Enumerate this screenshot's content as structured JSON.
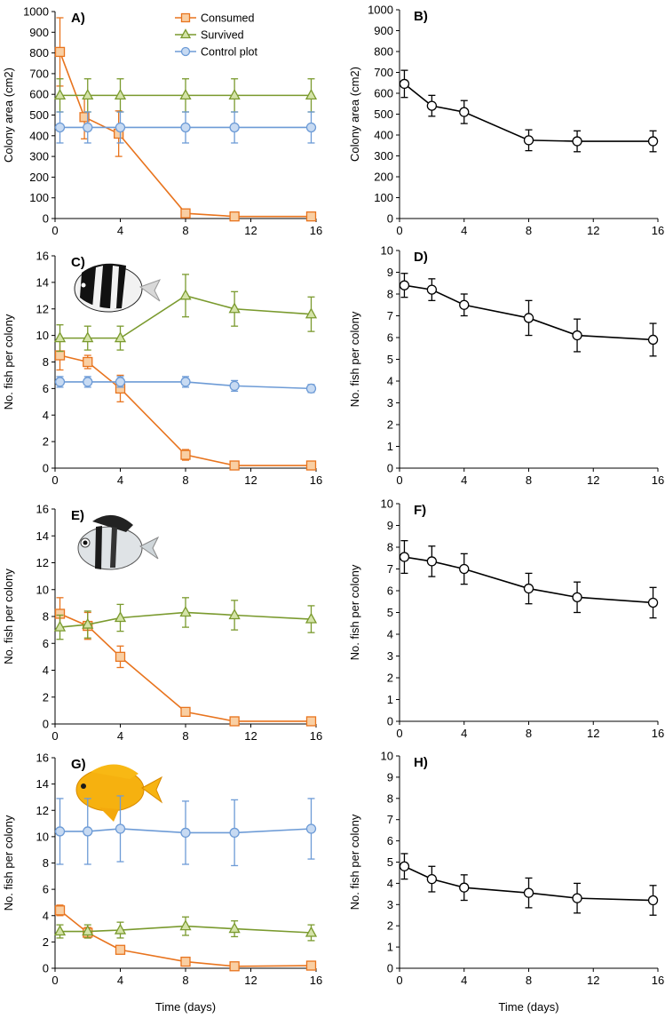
{
  "chart_data": [
    {
      "panel": "A)",
      "type": "line",
      "ylabel": "Colony area (cm2)",
      "xlabel": "",
      "ylim": [
        0,
        1000
      ],
      "ytick_step": 100,
      "xlim": [
        0,
        16
      ],
      "xticks": [
        0,
        4,
        8,
        12,
        16
      ],
      "legend": "top-center",
      "series": [
        {
          "name": "Consumed",
          "marker": "square",
          "color": "#e8741e",
          "fill": "#f9cfa3",
          "x": [
            0.3,
            1.8,
            3.9,
            8,
            11,
            15.7
          ],
          "y": [
            805,
            490,
            410,
            25,
            10,
            10
          ],
          "err": [
            165,
            105,
            110,
            0,
            0,
            0
          ]
        },
        {
          "name": "Survived",
          "marker": "triangle",
          "color": "#7a9a2e",
          "fill": "#d4e3a8",
          "x": [
            0.3,
            2,
            4,
            8,
            11,
            15.7
          ],
          "y": [
            595,
            595,
            595,
            595,
            595,
            595
          ],
          "err": [
            80,
            80,
            80,
            80,
            80,
            80
          ]
        },
        {
          "name": "Control plot",
          "marker": "circle",
          "color": "#6d9bd6",
          "fill": "#c7daf2",
          "x": [
            0.3,
            2,
            4,
            8,
            11,
            15.7
          ],
          "y": [
            440,
            440,
            440,
            440,
            440,
            440
          ],
          "err": [
            75,
            75,
            75,
            75,
            75,
            75
          ]
        }
      ]
    },
    {
      "panel": "B)",
      "type": "line",
      "ylabel": "Colony area (cm2)",
      "xlabel": "",
      "ylim": [
        0,
        1000
      ],
      "ytick_step": 100,
      "xlim": [
        0,
        16
      ],
      "xticks": [
        0,
        4,
        8,
        12,
        16
      ],
      "series": [
        {
          "marker": "circle",
          "color": "#000000",
          "fill": "#ffffff",
          "x": [
            0.3,
            2,
            4,
            8,
            11,
            15.7
          ],
          "y": [
            645,
            540,
            510,
            375,
            370,
            370
          ],
          "err": [
            65,
            50,
            55,
            50,
            50,
            50
          ]
        }
      ]
    },
    {
      "panel": "C)",
      "type": "line",
      "ylabel": "No. fish per colony",
      "xlabel": "",
      "ylim": [
        0,
        16
      ],
      "ytick_step": 2,
      "xlim": [
        0,
        16
      ],
      "xticks": [
        0,
        4,
        8,
        12,
        16
      ],
      "image": "humbug-damselfish-black-white",
      "series": [
        {
          "marker": "square",
          "color": "#e8741e",
          "fill": "#f9cfa3",
          "x": [
            0.3,
            2,
            4,
            8,
            11,
            15.7
          ],
          "y": [
            8.5,
            8.0,
            6.0,
            1.0,
            0.2,
            0.2
          ],
          "err": [
            1.1,
            0.5,
            1.0,
            0.4,
            0,
            0
          ]
        },
        {
          "marker": "triangle",
          "color": "#7a9a2e",
          "fill": "#d4e3a8",
          "x": [
            0.3,
            2,
            4,
            8,
            11,
            15.7
          ],
          "y": [
            9.8,
            9.8,
            9.8,
            13.0,
            12.0,
            11.6
          ],
          "err": [
            1.0,
            0.9,
            0.9,
            1.6,
            1.3,
            1.3
          ]
        },
        {
          "marker": "circle",
          "color": "#6d9bd6",
          "fill": "#c7daf2",
          "x": [
            0.3,
            2,
            4,
            8,
            11,
            15.7
          ],
          "y": [
            6.5,
            6.5,
            6.5,
            6.5,
            6.2,
            6.0
          ],
          "err": [
            0.4,
            0.4,
            0.4,
            0.4,
            0.4,
            0.3
          ]
        }
      ]
    },
    {
      "panel": "D)",
      "type": "line",
      "ylabel": "No. fish per colony",
      "xlabel": "",
      "ylim": [
        0,
        10
      ],
      "ytick_step": 1,
      "xlim": [
        0,
        16
      ],
      "xticks": [
        0,
        4,
        8,
        12,
        16
      ],
      "series": [
        {
          "marker": "circle",
          "color": "#000000",
          "fill": "#ffffff",
          "x": [
            0.3,
            2,
            4,
            8,
            11,
            15.7
          ],
          "y": [
            8.4,
            8.2,
            7.5,
            6.9,
            6.1,
            5.9
          ],
          "err": [
            0.55,
            0.5,
            0.5,
            0.8,
            0.75,
            0.75
          ]
        }
      ]
    },
    {
      "panel": "E)",
      "type": "line",
      "ylabel": "No. fish per colony",
      "xlabel": "",
      "ylim": [
        0,
        16
      ],
      "ytick_step": 2,
      "xlim": [
        0,
        16
      ],
      "xticks": [
        0,
        4,
        8,
        12,
        16
      ],
      "image": "silver-striped-damselfish",
      "series": [
        {
          "marker": "square",
          "color": "#e8741e",
          "fill": "#f9cfa3",
          "x": [
            0.3,
            2,
            4,
            8,
            11,
            15.7
          ],
          "y": [
            8.2,
            7.3,
            5.0,
            0.9,
            0.2,
            0.2
          ],
          "err": [
            1.2,
            1.0,
            0.8,
            0,
            0,
            0
          ]
        },
        {
          "marker": "triangle",
          "color": "#7a9a2e",
          "fill": "#d4e3a8",
          "x": [
            0.3,
            2,
            4,
            8,
            11,
            15.7
          ],
          "y": [
            7.2,
            7.4,
            7.9,
            8.3,
            8.1,
            7.8
          ],
          "err": [
            0.9,
            1.0,
            1.0,
            1.1,
            1.1,
            1.0
          ]
        }
      ]
    },
    {
      "panel": "F)",
      "type": "line",
      "ylabel": "No. fish per colony",
      "xlabel": "",
      "ylim": [
        0,
        10
      ],
      "ytick_step": 1,
      "xlim": [
        0,
        16
      ],
      "xticks": [
        0,
        4,
        8,
        12,
        16
      ],
      "series": [
        {
          "marker": "circle",
          "color": "#000000",
          "fill": "#ffffff",
          "x": [
            0.3,
            2,
            4,
            8,
            11,
            15.7
          ],
          "y": [
            7.55,
            7.35,
            7.0,
            6.1,
            5.7,
            5.45
          ],
          "err": [
            0.75,
            0.7,
            0.7,
            0.7,
            0.7,
            0.7
          ]
        }
      ]
    },
    {
      "panel": "G)",
      "type": "line",
      "ylabel": "No. fish per colony",
      "xlabel": "Time (days)",
      "ylim": [
        0,
        16
      ],
      "ytick_step": 2,
      "xlim": [
        0,
        16
      ],
      "xticks": [
        0,
        4,
        8,
        12,
        16
      ],
      "image": "yellow-damselfish",
      "series": [
        {
          "marker": "square",
          "color": "#e8741e",
          "fill": "#f9cfa3",
          "x": [
            0.3,
            2,
            4,
            8,
            11,
            15.7
          ],
          "y": [
            4.4,
            2.7,
            1.4,
            0.5,
            0.15,
            0.2
          ],
          "err": [
            0.4,
            0.4,
            0.3,
            0,
            0,
            0
          ]
        },
        {
          "marker": "triangle",
          "color": "#7a9a2e",
          "fill": "#d4e3a8",
          "x": [
            0.3,
            2,
            4,
            8,
            11,
            15.7
          ],
          "y": [
            2.8,
            2.8,
            2.9,
            3.2,
            3.0,
            2.7
          ],
          "err": [
            0.5,
            0.5,
            0.6,
            0.7,
            0.6,
            0.6
          ]
        },
        {
          "marker": "circle",
          "color": "#6d9bd6",
          "fill": "#c7daf2",
          "x": [
            0.3,
            2,
            4,
            8,
            11,
            15.7
          ],
          "y": [
            10.4,
            10.4,
            10.6,
            10.3,
            10.3,
            10.6
          ],
          "err": [
            2.5,
            2.5,
            2.5,
            2.4,
            2.5,
            2.3
          ]
        }
      ]
    },
    {
      "panel": "H)",
      "type": "line",
      "ylabel": "No. fish per colony",
      "xlabel": "Time (days)",
      "ylim": [
        0,
        10
      ],
      "ytick_step": 1,
      "xlim": [
        0,
        16
      ],
      "xticks": [
        0,
        4,
        8,
        12,
        16
      ],
      "series": [
        {
          "marker": "circle",
          "color": "#000000",
          "fill": "#ffffff",
          "x": [
            0.3,
            2,
            4,
            8,
            11,
            15.7
          ],
          "y": [
            4.8,
            4.2,
            3.8,
            3.55,
            3.3,
            3.2
          ],
          "err": [
            0.6,
            0.6,
            0.6,
            0.7,
            0.7,
            0.7
          ]
        }
      ]
    }
  ]
}
